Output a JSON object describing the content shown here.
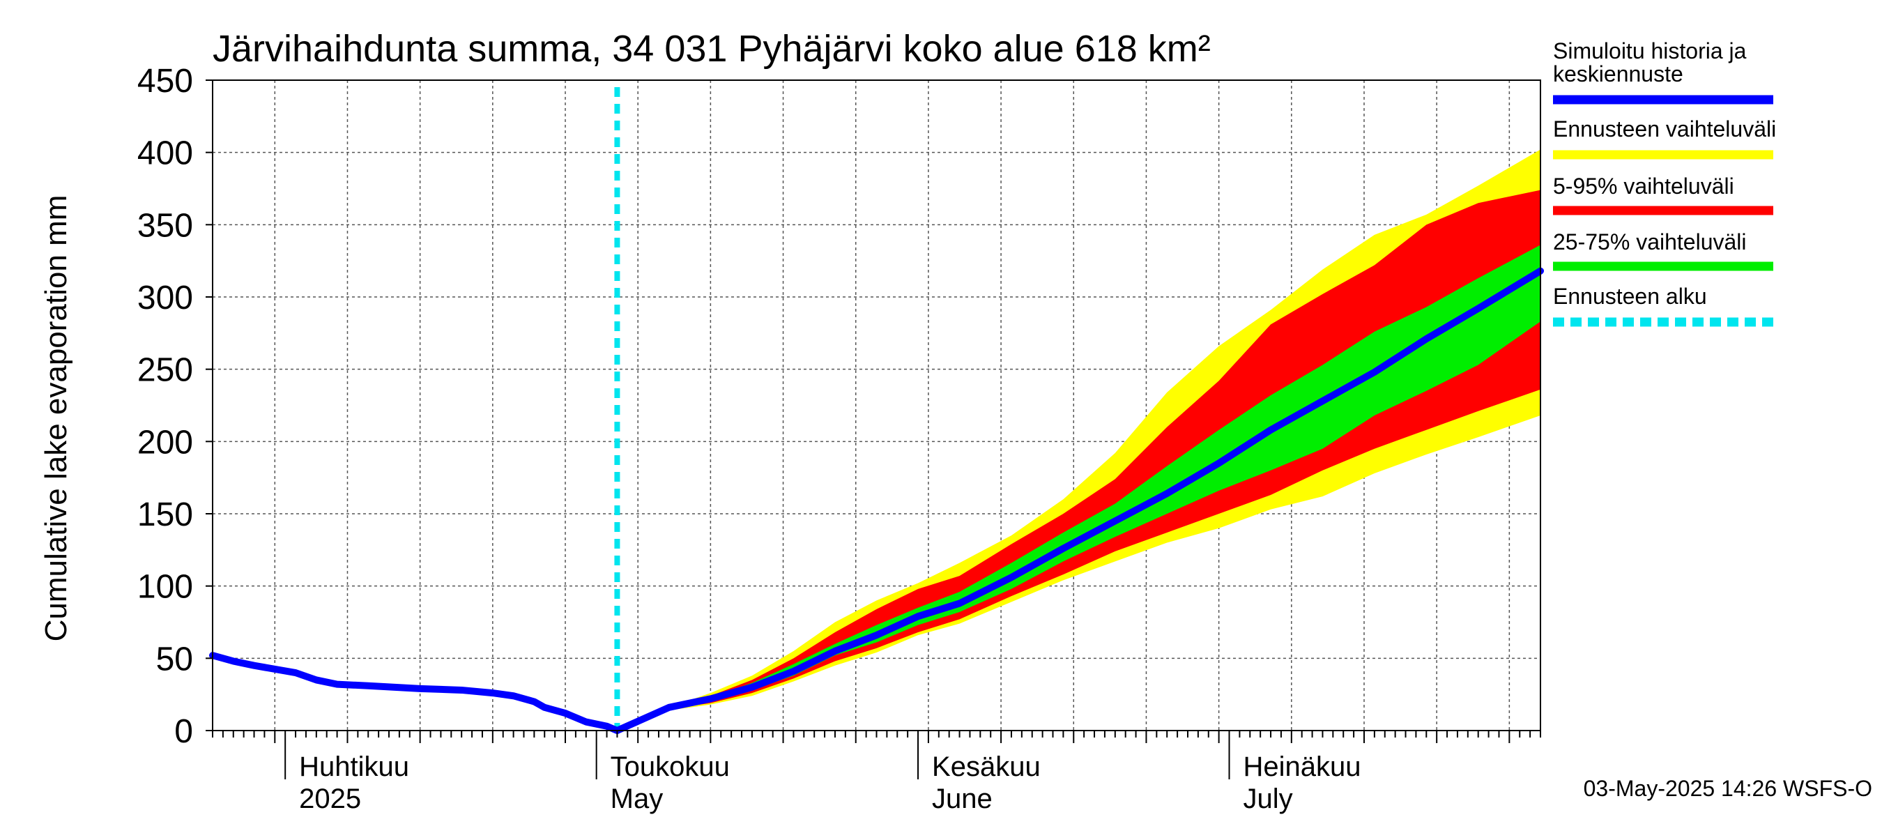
{
  "chart_data": {
    "type": "area",
    "title": "Järvihaihdunta summa, 34 031 Pyhäjärvi koko alue 618 km²",
    "ylabel": "Cumulative lake evaporation   mm",
    "xlabel": "",
    "ylim": [
      0,
      450
    ],
    "xlim": [
      "2025-03-25",
      "2025-07-31"
    ],
    "grid": true,
    "legend_placement": "right",
    "y_ticks": [
      "0",
      "50",
      "100",
      "150",
      "200",
      "250",
      "300",
      "350",
      "400",
      "450"
    ],
    "month_labels": [
      {
        "line1": "Huhtikuu",
        "line2": "2025",
        "date": "2025-04-01"
      },
      {
        "line1": "Toukokuu",
        "line2": "May",
        "date": "2025-05-01"
      },
      {
        "line1": "Kesäkuu",
        "line2": "June",
        "date": "2025-06-01"
      },
      {
        "line1": "Heinäkuu",
        "line2": "July",
        "date": "2025-07-01"
      }
    ],
    "forecast_start": "2025-05-03",
    "colors": {
      "history": "#0000ff",
      "range_full": "#ffff00",
      "range_5_95": "#ff0000",
      "range_25_75": "#00ee00",
      "forecast_start": "#00e5ee",
      "grid": "#555555"
    },
    "legend": [
      {
        "label": "Simuloitu historia ja keskiennuste",
        "color": "#0000ff",
        "style": "solid"
      },
      {
        "label": "Ennusteen vaihteluväli",
        "color": "#ffff00",
        "style": "solid"
      },
      {
        "label": "5-95% vaihteluväli",
        "color": "#ff0000",
        "style": "solid"
      },
      {
        "label": "25-75% vaihteluväli",
        "color": "#00ee00",
        "style": "solid"
      },
      {
        "label": "Ennusteen alku",
        "color": "#00e5ee",
        "style": "dashed"
      }
    ],
    "history": {
      "x": [
        "2025-03-25",
        "2025-03-27",
        "2025-03-29",
        "2025-04-02",
        "2025-04-04",
        "2025-04-06",
        "2025-04-09",
        "2025-04-14",
        "2025-04-18",
        "2025-04-21",
        "2025-04-23",
        "2025-04-25",
        "2025-04-26",
        "2025-04-28",
        "2025-04-30",
        "2025-05-02",
        "2025-05-03"
      ],
      "y": [
        52,
        48,
        45,
        40,
        35,
        32,
        31,
        29,
        28,
        26,
        24,
        20,
        16,
        12,
        6,
        3,
        0
      ]
    },
    "forecast": {
      "x": [
        "2025-05-03",
        "2025-05-08",
        "2025-05-12",
        "2025-05-16",
        "2025-05-20",
        "2025-05-24",
        "2025-05-28",
        "2025-06-01",
        "2025-06-05",
        "2025-06-10",
        "2025-06-15",
        "2025-06-20",
        "2025-06-25",
        "2025-06-30",
        "2025-07-05",
        "2025-07-10",
        "2025-07-15",
        "2025-07-20",
        "2025-07-25",
        "2025-07-31"
      ],
      "median": [
        0,
        16,
        22,
        30,
        41,
        55,
        66,
        79,
        88,
        106,
        126,
        145,
        164,
        185,
        208,
        228,
        248,
        271,
        292,
        318
      ],
      "full_min": [
        0,
        14,
        18,
        24,
        34,
        45,
        54,
        66,
        74,
        89,
        104,
        117,
        130,
        140,
        153,
        162,
        178,
        191,
        203,
        218
      ],
      "full_max": [
        0,
        16,
        26,
        38,
        55,
        75,
        90,
        102,
        116,
        135,
        160,
        192,
        234,
        266,
        291,
        319,
        343,
        357,
        377,
        402
      ],
      "p5": [
        0,
        15,
        19,
        26,
        36,
        48,
        57,
        68,
        77,
        93,
        108,
        124,
        137,
        150,
        163,
        180,
        195,
        208,
        221,
        236
      ],
      "p95": [
        0,
        16,
        24,
        35,
        50,
        68,
        84,
        98,
        107,
        129,
        150,
        174,
        210,
        242,
        281,
        302,
        322,
        350,
        365,
        374
      ],
      "p25": [
        0,
        15,
        20,
        28,
        38,
        52,
        61,
        73,
        82,
        98,
        117,
        134,
        150,
        166,
        180,
        195,
        218,
        235,
        253,
        283
      ],
      "p75": [
        0,
        16,
        23,
        33,
        46,
        60,
        73,
        85,
        96,
        116,
        137,
        157,
        183,
        208,
        232,
        253,
        276,
        293,
        313,
        336
      ]
    }
  },
  "footer": {
    "timestamp": "03-May-2025 14:26 WSFS-O"
  }
}
